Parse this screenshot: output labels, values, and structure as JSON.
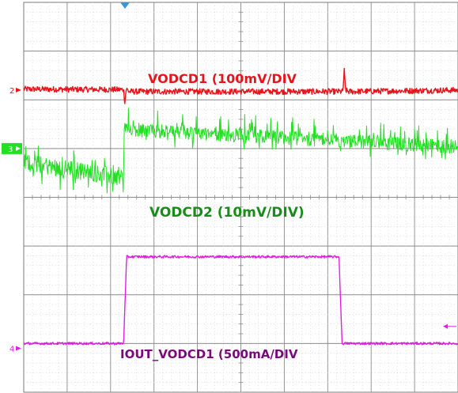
{
  "chart_data": {
    "type": "line",
    "title": "",
    "xlabel": "",
    "ylabel": "",
    "grid": true,
    "divisions": {
      "horizontal": 10,
      "vertical": 8
    },
    "series": [
      {
        "name": "VODCD1 (100mV/DIV",
        "channel": "2",
        "color": "#e8141c",
        "label_color": "#e8141c",
        "x": [
          0,
          2.3,
          2.33,
          2.36,
          2.42,
          7.35,
          7.38,
          7.41,
          7.47,
          10
        ],
        "y": [
          2.22,
          2.21,
          1.95,
          2.23,
          2.17,
          2.17,
          2.6,
          2.2,
          2.17,
          2.2
        ],
        "noise_div": 0.06
      },
      {
        "name": "VODCD2 (10mV/DIV)",
        "channel": "3",
        "color": "#22e022",
        "label_color": "#1a8c1a",
        "x": [
          0,
          2.3,
          2.31,
          10
        ],
        "y": [
          0.72,
          0.4,
          1.36,
          1.0
        ],
        "noise_div": 0.3
      },
      {
        "name": "IOUT_VODCD1 (500mA/DIV",
        "channel": "4",
        "color": "#e020e0",
        "label_color": "#7a0a7a",
        "x": [
          0,
          2.3,
          2.37,
          7.26,
          7.33,
          10
        ],
        "y": [
          -3.0,
          -3.0,
          -1.22,
          -1.22,
          -3.0,
          -3.0
        ],
        "noise_div": 0.025
      }
    ],
    "markers": [
      {
        "channel": "2",
        "level": 2.2
      },
      {
        "channel": "3",
        "level": 1.0
      },
      {
        "channel": "4",
        "level": -3.1
      }
    ]
  },
  "trigger_color": "#3399dd"
}
